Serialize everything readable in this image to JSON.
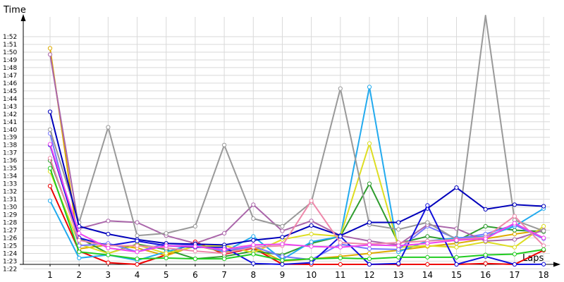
{
  "chart_data": {
    "type": "line",
    "xlabel": "Laps",
    "ylabel": "Time",
    "grid": true,
    "x": [
      1,
      2,
      3,
      4,
      5,
      6,
      7,
      8,
      9,
      10,
      11,
      12,
      13,
      14,
      15,
      16,
      17,
      18
    ],
    "ylim": [
      81,
      112.5
    ],
    "y_ticks": [
      "1:22",
      "1:23",
      "1:24",
      "1:25",
      "1:26",
      "1:27",
      "1:28",
      "1:29",
      "1:30",
      "1:31",
      "1:32",
      "1:33",
      "1:34",
      "1:35",
      "1:36",
      "1:37",
      "1:38",
      "1:39",
      "1:40",
      "1:41",
      "1:42",
      "1:43",
      "1:44",
      "1:45",
      "1:46",
      "1:47",
      "1:48",
      "1:49",
      "1:50",
      "1:51",
      "1:52"
    ],
    "y_tick_values": [
      82,
      83,
      84,
      85,
      86,
      87,
      88,
      89,
      90,
      91,
      92,
      93,
      94,
      95,
      96,
      97,
      98,
      99,
      100,
      101,
      102,
      103,
      104,
      105,
      106,
      107,
      108,
      109,
      110,
      111,
      112
    ],
    "series": [
      {
        "color": "#ee0000",
        "values": [
          92.7,
          84.3,
          82.8,
          82.5,
          83.8,
          85.5,
          83.9,
          84.7,
          82.6,
          82.5,
          82.3,
          82.3,
          82.4,
          82.3,
          82.5,
          82.7,
          81.9,
          84.4
        ]
      },
      {
        "color": "#ddaa00",
        "values": [
          110.5,
          84.6,
          85.1,
          84.7,
          83.7,
          85.0,
          84.2,
          84.8,
          83.0,
          83.3,
          83.6,
          84.0,
          84.4,
          84.9,
          85.3,
          85.9,
          86.5,
          87.0
        ]
      },
      {
        "color": "#2e9c2e",
        "values": [
          96.0,
          86.0,
          84.0,
          85.2,
          84.5,
          83.3,
          83.6,
          84.3,
          83.8,
          85.3,
          86.2,
          93.0,
          85.3,
          86.2,
          85.6,
          87.5,
          87.0,
          86.8
        ]
      },
      {
        "color": "#22aaee",
        "values": [
          90.8,
          83.4,
          83.8,
          83.1,
          84.2,
          85.2,
          84.2,
          86.2,
          83.2,
          85.5,
          86.2,
          105.5,
          84.2,
          85.6,
          86.0,
          86.2,
          87.5,
          89.8
        ]
      },
      {
        "color": "#dddd22",
        "values": [
          94.6,
          85.2,
          84.0,
          85.1,
          84.0,
          84.9,
          85.0,
          84.1,
          85.8,
          86.5,
          86.2,
          98.2,
          84.8,
          85.0,
          84.8,
          85.5,
          84.8,
          87.5
        ]
      },
      {
        "color": "#7777ff",
        "values": [
          99.5,
          85.0,
          85.3,
          84.2,
          85.3,
          85.0,
          84.3,
          84.9,
          83.6,
          83.2,
          85.2,
          84.6,
          84.5,
          87.5,
          85.9,
          86.5,
          87.7,
          85.9
        ]
      },
      {
        "color": "#aa66aa",
        "values": [
          109.7,
          87.2,
          88.2,
          88.0,
          86.3,
          85.3,
          86.6,
          90.3,
          86.9,
          88.2,
          86.3,
          85.6,
          85.1,
          87.7,
          87.2,
          85.6,
          85.8,
          87.0
        ]
      },
      {
        "color": "#999999",
        "values": [
          100.0,
          88.0,
          100.3,
          86.3,
          86.6,
          87.5,
          98.0,
          88.5,
          87.5,
          90.6,
          105.3,
          87.7,
          87.1,
          88.0,
          85.8,
          115.0,
          88.3,
          86.9
        ]
      },
      {
        "color": "#0000bb",
        "values": [
          102.3,
          87.5,
          86.5,
          85.8,
          85.3,
          85.2,
          85.1,
          85.7,
          86.1,
          87.6,
          86.3,
          88.0,
          88.0,
          89.8,
          92.5,
          89.7,
          90.3,
          90.1
        ]
      },
      {
        "color": "#1111dd",
        "values": [
          98.0,
          86.0,
          85.0,
          85.6,
          85.0,
          84.8,
          84.8,
          82.7,
          81.5,
          82.8,
          86.2,
          82.2,
          82.7,
          90.2,
          82.5,
          83.6,
          82.2,
          82.6
        ]
      },
      {
        "color": "#ee88aa",
        "values": [
          96.3,
          85.7,
          85.0,
          85.0,
          84.7,
          84.3,
          84.0,
          84.8,
          85.0,
          90.8,
          85.4,
          85.2,
          85.4,
          85.6,
          85.8,
          86.1,
          88.8,
          85.0
        ]
      },
      {
        "color": "#ee44ee",
        "values": [
          98.1,
          86.6,
          84.7,
          84.2,
          85.0,
          84.9,
          84.5,
          85.1,
          85.2,
          84.9,
          84.8,
          85.1,
          85.0,
          85.3,
          85.7,
          85.9,
          87.9,
          86.0
        ]
      },
      {
        "color": "#22cc22",
        "values": [
          95.0,
          84.2,
          83.8,
          83.3,
          83.4,
          83.3,
          83.3,
          83.9,
          83.1,
          83.3,
          83.4,
          83.3,
          83.5,
          83.5,
          83.5,
          83.8,
          83.9,
          84.5
        ]
      }
    ]
  }
}
